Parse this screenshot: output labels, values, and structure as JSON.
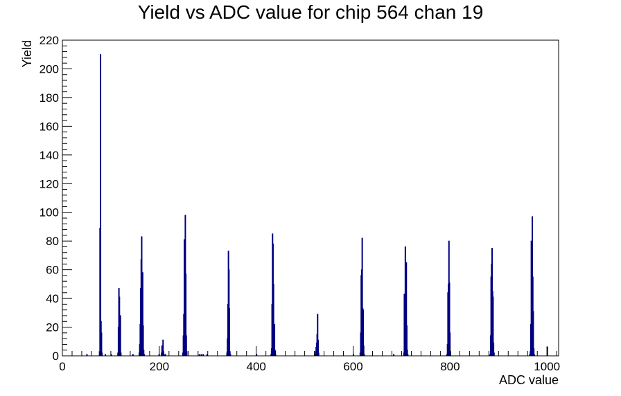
{
  "chart_data": {
    "type": "bar",
    "title": "Yield vs ADC value for chip 564 chan 19",
    "xlabel": "ADC value",
    "ylabel": "Yield",
    "xlim": [
      0,
      1024
    ],
    "ylim": [
      0,
      220
    ],
    "x_ticks": [
      0,
      200,
      400,
      600,
      800,
      1000
    ],
    "y_ticks": [
      0,
      20,
      40,
      60,
      80,
      100,
      120,
      140,
      160,
      180,
      200,
      220
    ],
    "grid": false,
    "legend": "none",
    "bar_color": "#000080",
    "bins": [
      {
        "x": 50,
        "y": 1
      },
      {
        "x": 76,
        "y": 3
      },
      {
        "x": 77,
        "y": 89
      },
      {
        "x": 78,
        "y": 210
      },
      {
        "x": 79,
        "y": 24
      },
      {
        "x": 80,
        "y": 16
      },
      {
        "x": 81,
        "y": 2
      },
      {
        "x": 88,
        "y": 1
      },
      {
        "x": 100,
        "y": 1
      },
      {
        "x": 114,
        "y": 2
      },
      {
        "x": 115,
        "y": 20
      },
      {
        "x": 116,
        "y": 47
      },
      {
        "x": 117,
        "y": 41
      },
      {
        "x": 118,
        "y": 28
      },
      {
        "x": 119,
        "y": 28
      },
      {
        "x": 120,
        "y": 2
      },
      {
        "x": 145,
        "y": 1
      },
      {
        "x": 158,
        "y": 2
      },
      {
        "x": 159,
        "y": 8
      },
      {
        "x": 160,
        "y": 22
      },
      {
        "x": 161,
        "y": 47
      },
      {
        "x": 162,
        "y": 67
      },
      {
        "x": 163,
        "y": 83
      },
      {
        "x": 164,
        "y": 27
      },
      {
        "x": 165,
        "y": 58
      },
      {
        "x": 166,
        "y": 21
      },
      {
        "x": 167,
        "y": 4
      },
      {
        "x": 168,
        "y": 1
      },
      {
        "x": 199,
        "y": 1
      },
      {
        "x": 204,
        "y": 2
      },
      {
        "x": 205,
        "y": 7
      },
      {
        "x": 206,
        "y": 6
      },
      {
        "x": 207,
        "y": 11
      },
      {
        "x": 208,
        "y": 3
      },
      {
        "x": 209,
        "y": 1
      },
      {
        "x": 212,
        "y": 1
      },
      {
        "x": 248,
        "y": 2
      },
      {
        "x": 249,
        "y": 14
      },
      {
        "x": 250,
        "y": 29
      },
      {
        "x": 251,
        "y": 81
      },
      {
        "x": 252,
        "y": 58
      },
      {
        "x": 253,
        "y": 98
      },
      {
        "x": 254,
        "y": 57
      },
      {
        "x": 255,
        "y": 14
      },
      {
        "x": 256,
        "y": 3
      },
      {
        "x": 282,
        "y": 1
      },
      {
        "x": 286,
        "y": 1
      },
      {
        "x": 290,
        "y": 1
      },
      {
        "x": 298,
        "y": 1
      },
      {
        "x": 339,
        "y": 2
      },
      {
        "x": 340,
        "y": 12
      },
      {
        "x": 341,
        "y": 36
      },
      {
        "x": 342,
        "y": 73
      },
      {
        "x": 343,
        "y": 60
      },
      {
        "x": 344,
        "y": 33
      },
      {
        "x": 345,
        "y": 3
      },
      {
        "x": 346,
        "y": 1
      },
      {
        "x": 400,
        "y": 1
      },
      {
        "x": 430,
        "y": 1
      },
      {
        "x": 431,
        "y": 5
      },
      {
        "x": 432,
        "y": 36
      },
      {
        "x": 433,
        "y": 85
      },
      {
        "x": 434,
        "y": 78
      },
      {
        "x": 435,
        "y": 50
      },
      {
        "x": 436,
        "y": 22
      },
      {
        "x": 437,
        "y": 22
      },
      {
        "x": 438,
        "y": 4
      },
      {
        "x": 439,
        "y": 1
      },
      {
        "x": 520,
        "y": 1
      },
      {
        "x": 522,
        "y": 3
      },
      {
        "x": 523,
        "y": 6
      },
      {
        "x": 524,
        "y": 9
      },
      {
        "x": 525,
        "y": 15
      },
      {
        "x": 526,
        "y": 29
      },
      {
        "x": 527,
        "y": 11
      },
      {
        "x": 528,
        "y": 2
      },
      {
        "x": 600,
        "y": 1
      },
      {
        "x": 614,
        "y": 2
      },
      {
        "x": 615,
        "y": 16
      },
      {
        "x": 616,
        "y": 56
      },
      {
        "x": 617,
        "y": 60
      },
      {
        "x": 618,
        "y": 82
      },
      {
        "x": 619,
        "y": 33
      },
      {
        "x": 620,
        "y": 32
      },
      {
        "x": 621,
        "y": 7
      },
      {
        "x": 622,
        "y": 1
      },
      {
        "x": 683,
        "y": 1
      },
      {
        "x": 704,
        "y": 2
      },
      {
        "x": 705,
        "y": 43
      },
      {
        "x": 706,
        "y": 37
      },
      {
        "x": 707,
        "y": 76
      },
      {
        "x": 708,
        "y": 56
      },
      {
        "x": 709,
        "y": 65
      },
      {
        "x": 710,
        "y": 21
      },
      {
        "x": 711,
        "y": 4
      },
      {
        "x": 712,
        "y": 1
      },
      {
        "x": 793,
        "y": 1
      },
      {
        "x": 794,
        "y": 8
      },
      {
        "x": 795,
        "y": 44
      },
      {
        "x": 796,
        "y": 50
      },
      {
        "x": 797,
        "y": 80
      },
      {
        "x": 798,
        "y": 51
      },
      {
        "x": 799,
        "y": 16
      },
      {
        "x": 800,
        "y": 3
      },
      {
        "x": 882,
        "y": 1
      },
      {
        "x": 883,
        "y": 14
      },
      {
        "x": 884,
        "y": 55
      },
      {
        "x": 885,
        "y": 64
      },
      {
        "x": 886,
        "y": 75
      },
      {
        "x": 887,
        "y": 45
      },
      {
        "x": 888,
        "y": 41
      },
      {
        "x": 889,
        "y": 9
      },
      {
        "x": 890,
        "y": 2
      },
      {
        "x": 964,
        "y": 1
      },
      {
        "x": 965,
        "y": 3
      },
      {
        "x": 966,
        "y": 22
      },
      {
        "x": 967,
        "y": 80
      },
      {
        "x": 968,
        "y": 38
      },
      {
        "x": 969,
        "y": 97
      },
      {
        "x": 970,
        "y": 55
      },
      {
        "x": 971,
        "y": 31
      },
      {
        "x": 972,
        "y": 5
      },
      {
        "x": 973,
        "y": 1
      },
      {
        "x": 1000,
        "y": 6
      }
    ]
  }
}
